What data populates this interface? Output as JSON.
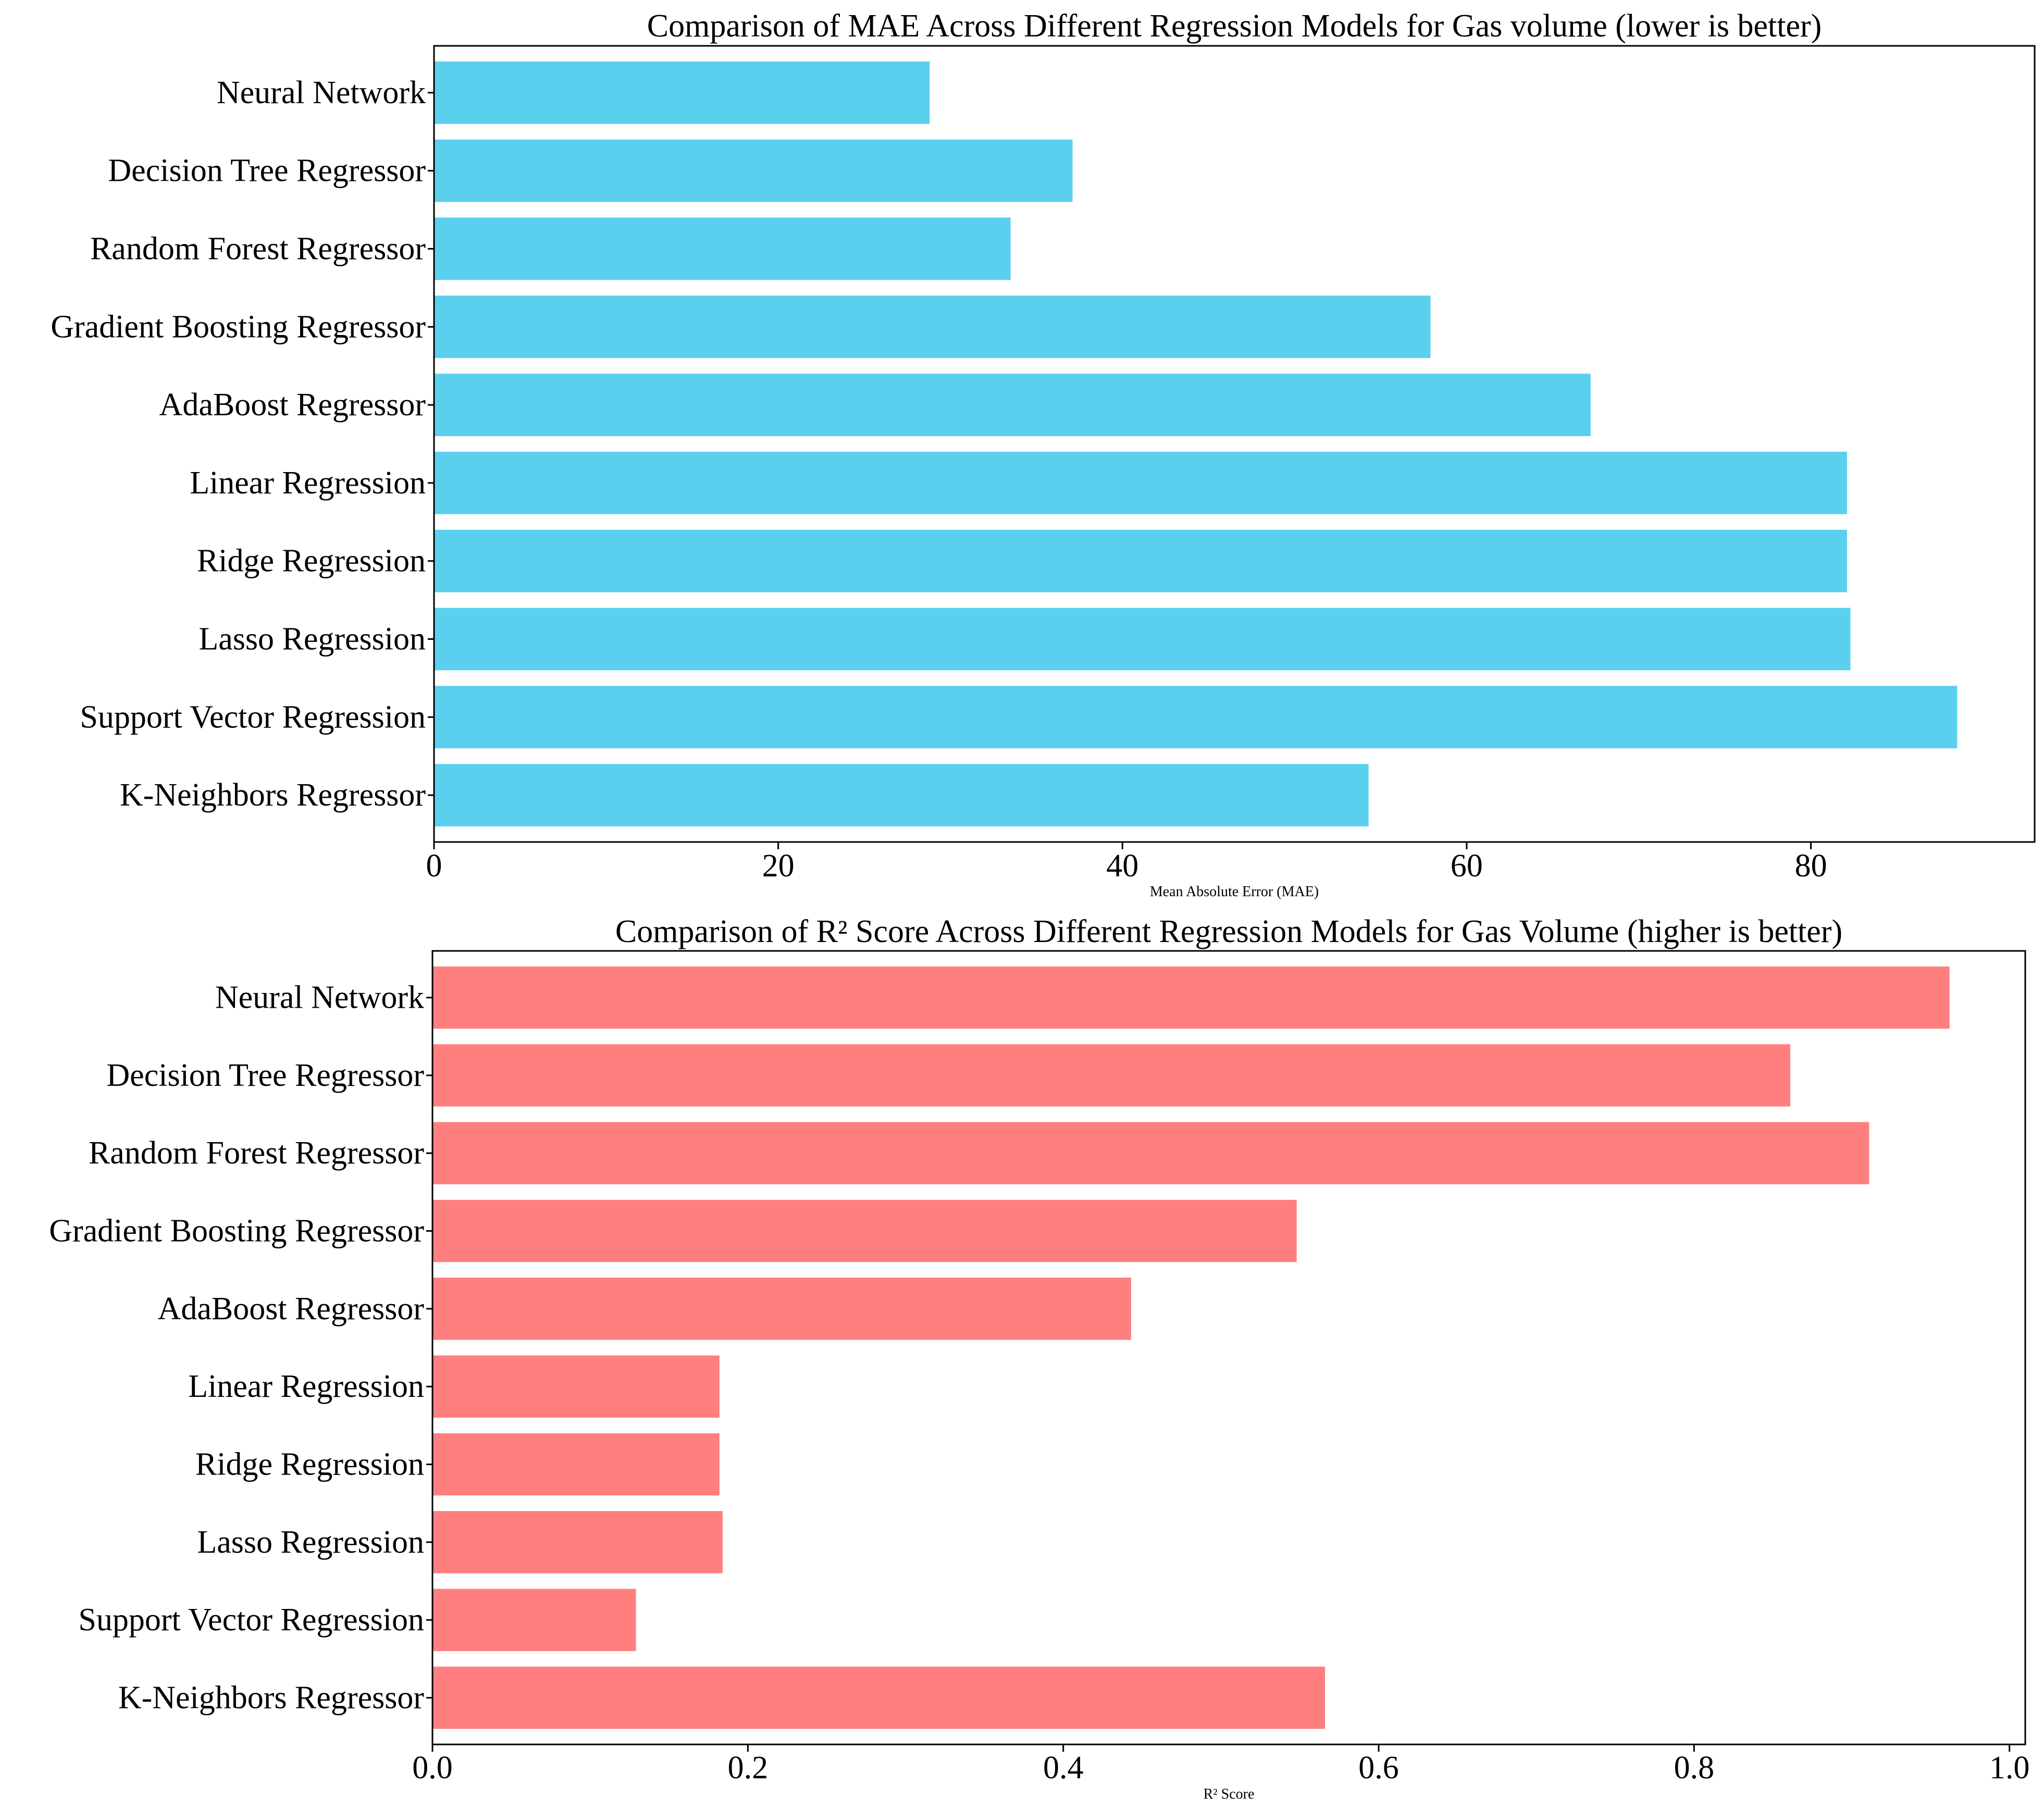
{
  "colors": {
    "mae_bar": "#5BD0EE",
    "r2_bar": "#FF7F7F",
    "axis": "#000000",
    "background": "#FFFFFF"
  },
  "chart_data": [
    {
      "type": "bar",
      "orientation": "horizontal",
      "title": "Comparison of MAE Across Different Regression Models for Gas volume (lower is better)",
      "xlabel": "Mean Absolute Error (MAE)",
      "ylabel": "",
      "categories": [
        "Neural Network",
        "Decision Tree Regressor",
        "Random Forest Regressor",
        "Gradient Boosting Regressor",
        "AdaBoost Regressor",
        "Linear Regression",
        "Ridge Regression",
        "Lasso Regression",
        "Support Vector Regression",
        "K-Neighbors Regressor"
      ],
      "values": [
        28.8,
        37.1,
        33.5,
        57.9,
        67.2,
        82.1,
        82.1,
        82.3,
        88.5,
        54.3
      ],
      "xlim": [
        0,
        93
      ],
      "xticks": [
        0,
        20,
        40,
        60,
        80
      ],
      "xtick_labels": [
        "0",
        "20",
        "40",
        "60",
        "80"
      ],
      "grid": false
    },
    {
      "type": "bar",
      "orientation": "horizontal",
      "title": "Comparison of R² Score Across Different Regression Models for Gas Volume (higher is better)",
      "xlabel": "R² Score",
      "ylabel": "",
      "categories": [
        "Neural Network",
        "Decision Tree Regressor",
        "Random Forest Regressor",
        "Gradient Boosting Regressor",
        "AdaBoost Regressor",
        "Linear Regression",
        "Ridge Regression",
        "Lasso Regression",
        "Support Vector Regression",
        "K-Neighbors Regressor"
      ],
      "values": [
        0.962,
        0.861,
        0.911,
        0.548,
        0.443,
        0.182,
        0.182,
        0.184,
        0.129,
        0.566
      ],
      "xlim": [
        0,
        1.01
      ],
      "xticks": [
        0,
        0.2,
        0.4,
        0.6,
        0.8,
        1.0
      ],
      "xtick_labels": [
        "0.0",
        "0.2",
        "0.4",
        "0.6",
        "0.8",
        "1.0"
      ],
      "grid": false
    }
  ]
}
